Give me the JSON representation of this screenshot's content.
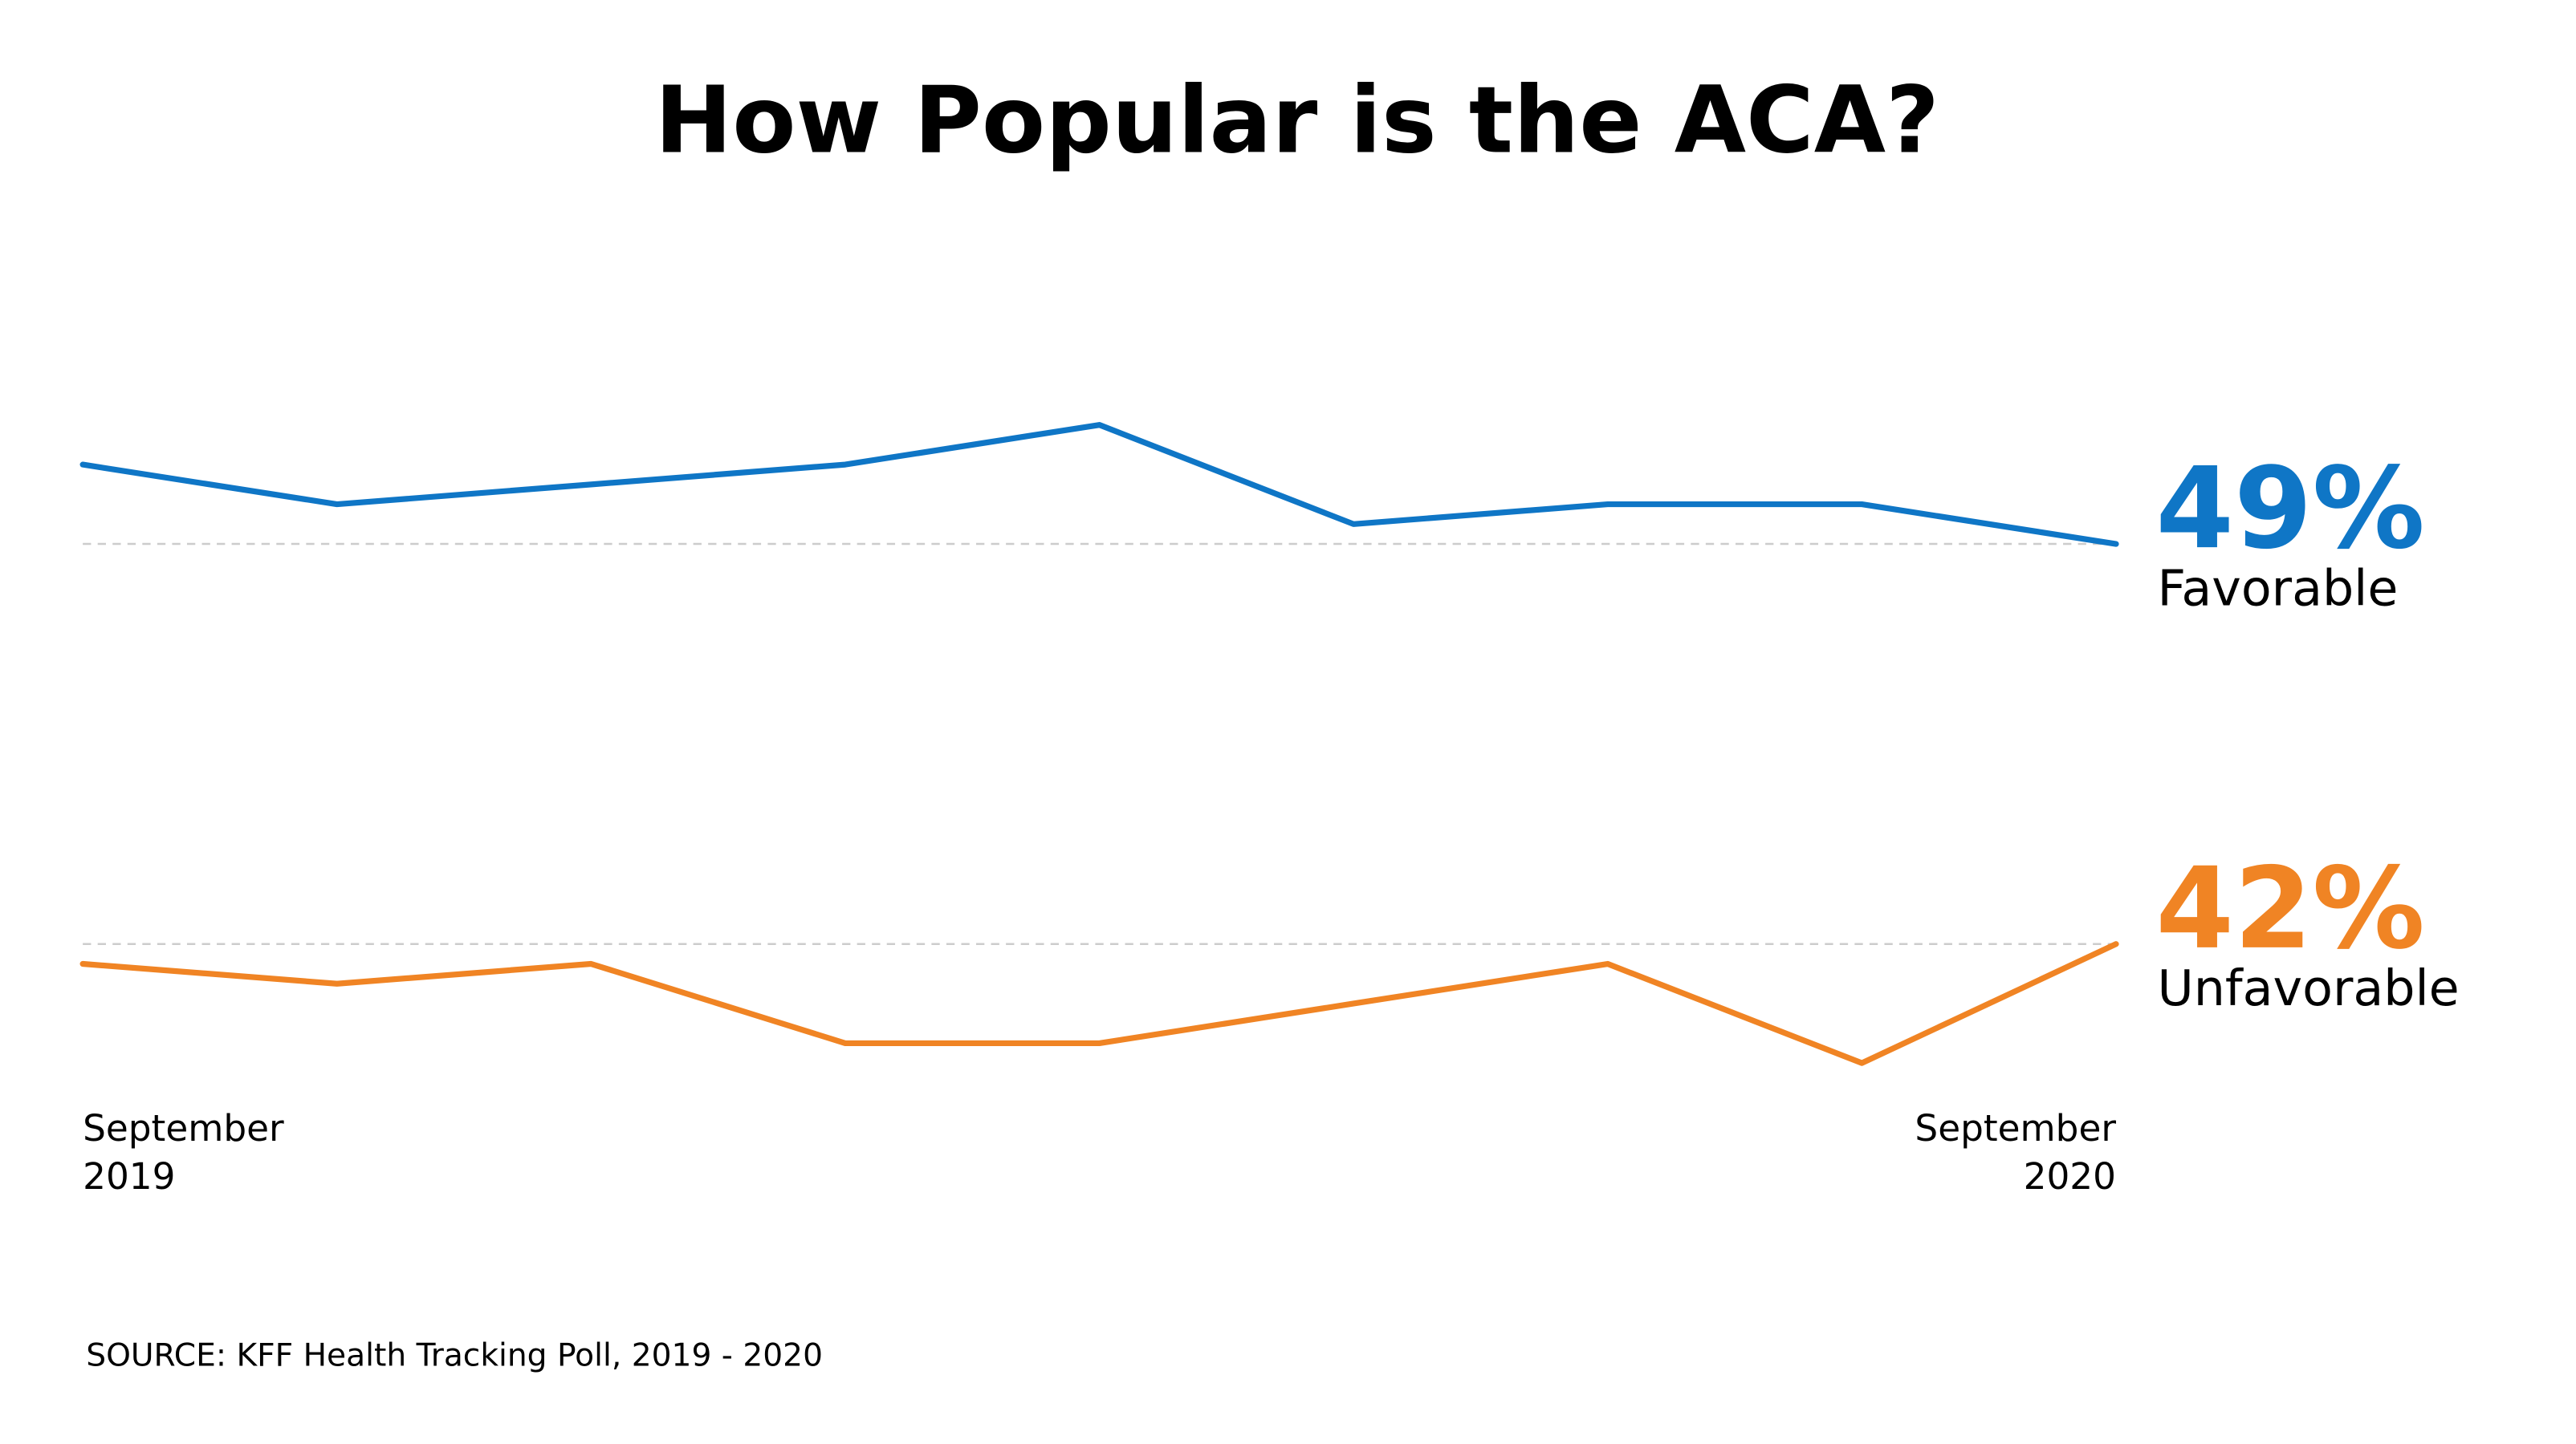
{
  "chart_data": {
    "type": "line",
    "title": "How Popular is the ACA?",
    "categories": [
      "September 2019",
      null,
      null,
      null,
      null,
      null,
      null,
      null,
      "September 2020"
    ],
    "series": [
      {
        "name": "Favorable",
        "color": "#0f76c6",
        "ylim": [
          48,
          57
        ],
        "values": [
          53,
          51,
          52,
          53,
          55,
          50,
          51,
          51,
          49
        ],
        "value_labels": [
          null,
          null,
          null,
          null,
          null,
          null,
          null,
          null,
          "49%"
        ]
      },
      {
        "name": "Unfavorable",
        "color": "#f08424",
        "ylim": [
          34,
          43
        ],
        "values": [
          41,
          40,
          41,
          37,
          37,
          39,
          41,
          36,
          42
        ],
        "value_labels": [
          null,
          null,
          null,
          null,
          null,
          null,
          null,
          null,
          "42%"
        ]
      }
    ],
    "source": "SOURCE: KFF Health Tracking Poll, 2019 - 2020"
  }
}
